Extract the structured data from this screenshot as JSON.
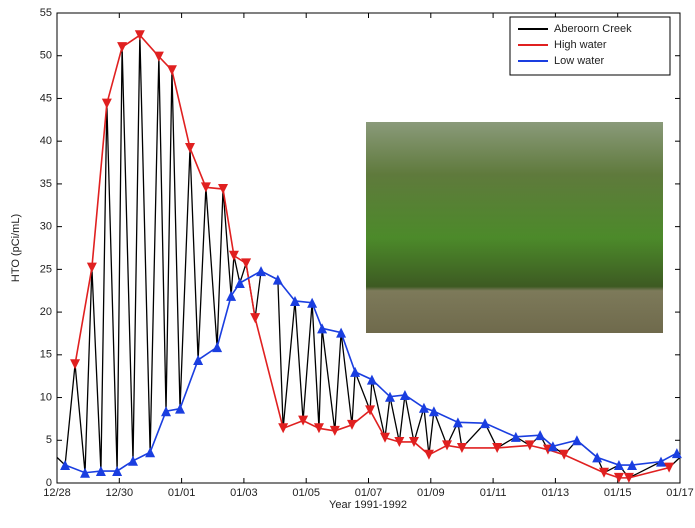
{
  "chart_data": {
    "type": "line",
    "xlabel": "Year 1991-1992",
    "ylabel": "HTO (pCi/mL)",
    "xlim": [
      0,
      20
    ],
    "ylim": [
      0,
      55
    ],
    "xticks": [
      {
        "value": 0,
        "label": "12/28"
      },
      {
        "value": 2,
        "label": "12/30"
      },
      {
        "value": 4,
        "label": "01/01"
      },
      {
        "value": 6,
        "label": "01/03"
      },
      {
        "value": 8,
        "label": "01/05"
      },
      {
        "value": 10,
        "label": "01/07"
      },
      {
        "value": 12,
        "label": "01/09"
      },
      {
        "value": 14,
        "label": "01/11"
      },
      {
        "value": 16,
        "label": "01/13"
      },
      {
        "value": 18,
        "label": "01/15"
      },
      {
        "value": 20,
        "label": "01/17"
      }
    ],
    "yticks": [
      0,
      5,
      10,
      15,
      20,
      25,
      30,
      35,
      40,
      45,
      50,
      55
    ],
    "legend": "upper right",
    "series": [
      {
        "name": "Aberoorn Creek",
        "color": "#000000",
        "marker": "none",
        "x": [
          0,
          0.26,
          0.58,
          0.9,
          1.12,
          1.41,
          1.6,
          1.93,
          2.09,
          2.44,
          2.66,
          2.99,
          3.27,
          3.5,
          3.69,
          3.95,
          4.27,
          4.53,
          4.78,
          5.14,
          5.33,
          5.59,
          5.68,
          5.87,
          6.07,
          6.36,
          6.55,
          7.09,
          7.26,
          7.64,
          7.9,
          8.19,
          8.41,
          8.51,
          8.92,
          9.12,
          9.47,
          9.57,
          10.05,
          10.11,
          10.53,
          10.69,
          10.99,
          11.17,
          11.46,
          11.78,
          11.94,
          12.1,
          12.52,
          12.87,
          13.0,
          13.74,
          14.13,
          14.73,
          15.18,
          15.51,
          15.76,
          15.92,
          16.28,
          16.69,
          17.34,
          17.56,
          18.04,
          18.36,
          19.39,
          19.65,
          20
        ],
        "values": [
          3.0,
          2.1,
          13.9,
          1.2,
          25.2,
          1.4,
          44.4,
          1.4,
          51,
          2.6,
          52.4,
          3.6,
          49.9,
          8.4,
          48.3,
          8.7,
          39.2,
          14.4,
          34.6,
          15.9,
          34.4,
          21.9,
          26.6,
          23.4,
          25.7,
          19.3,
          24.8,
          23.8,
          6.4,
          21.3,
          7.3,
          21.1,
          6.4,
          18.1,
          6.1,
          17.6,
          6.8,
          13.0,
          8.5,
          12.1,
          5.3,
          10.1,
          4.8,
          10.3,
          4.8,
          8.8,
          3.3,
          8.4,
          4.4,
          7.1,
          4.1,
          7.0,
          4.1,
          5.4,
          4.4,
          5.6,
          3.9,
          4.3,
          3.3,
          5.0,
          3.0,
          1.2,
          2.1,
          0.6,
          2.5,
          1.8,
          3.0
        ]
      },
      {
        "name": "High water",
        "color": "#e02020",
        "marker": "v",
        "x": [
          0.58,
          1.12,
          1.6,
          2.09,
          2.66,
          3.27,
          3.69,
          4.27,
          4.78,
          5.33,
          5.68,
          6.07,
          6.36,
          7.26,
          7.9,
          8.41,
          8.92,
          9.47,
          10.05,
          10.53,
          10.99,
          11.46,
          11.94,
          12.52,
          13.0,
          14.13,
          15.18,
          15.76,
          16.28,
          17.56,
          18.04,
          18.36,
          19.65
        ],
        "values": [
          13.9,
          25.2,
          44.4,
          51,
          52.4,
          49.9,
          48.3,
          39.2,
          34.6,
          34.4,
          26.6,
          25.7,
          19.3,
          6.4,
          7.3,
          6.4,
          6.1,
          6.8,
          8.5,
          5.3,
          4.8,
          4.8,
          3.3,
          4.4,
          4.1,
          4.1,
          4.4,
          3.9,
          3.3,
          1.2,
          0.6,
          0.6,
          1.8
        ]
      },
      {
        "name": "Low water",
        "color": "#1a3ee0",
        "marker": "^",
        "x": [
          0.26,
          0.9,
          1.41,
          1.93,
          2.44,
          2.99,
          3.5,
          3.95,
          4.53,
          5.14,
          5.59,
          5.87,
          6.55,
          7.09,
          7.64,
          8.19,
          8.51,
          9.12,
          9.57,
          10.11,
          10.69,
          11.17,
          11.78,
          12.1,
          12.87,
          13.74,
          14.73,
          15.51,
          15.92,
          16.69,
          17.34,
          18.04,
          18.46,
          19.39,
          19.9
        ],
        "values": [
          2.1,
          1.2,
          1.4,
          1.4,
          2.6,
          3.6,
          8.4,
          8.7,
          14.4,
          15.9,
          21.9,
          23.4,
          24.8,
          23.8,
          21.3,
          21.1,
          18.1,
          17.6,
          13.0,
          12.1,
          10.1,
          10.3,
          8.8,
          8.4,
          7.1,
          7.0,
          5.4,
          5.6,
          4.3,
          5.0,
          3.0,
          2.1,
          2.1,
          2.5,
          3.5
        ]
      }
    ]
  }
}
